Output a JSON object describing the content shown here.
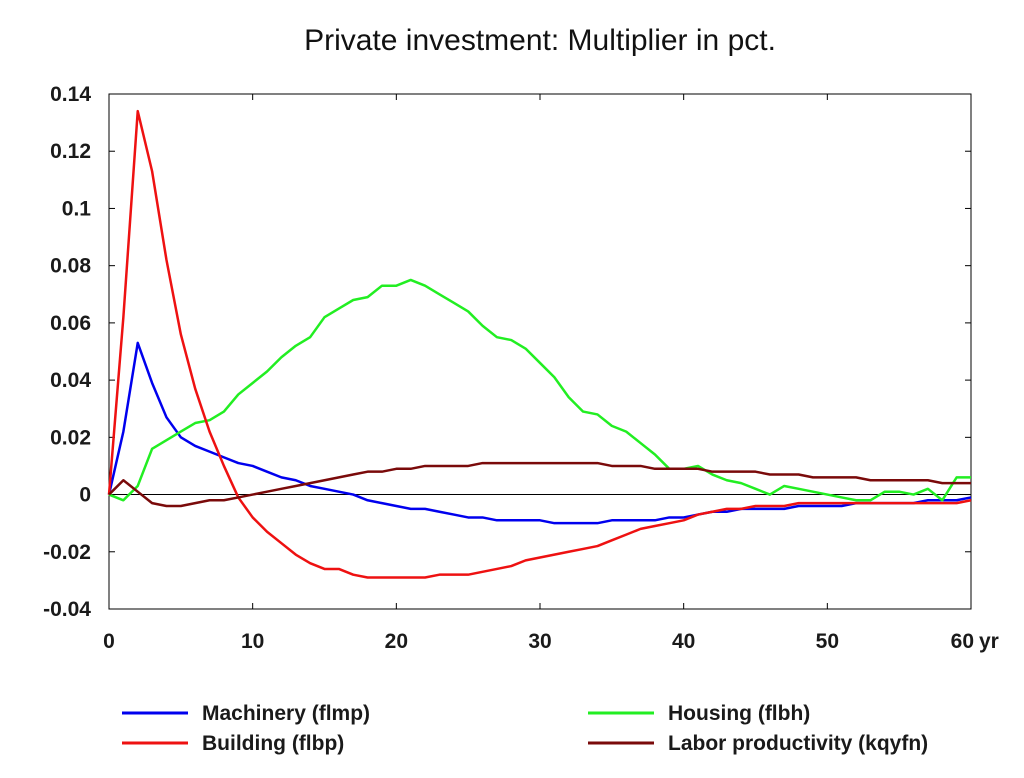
{
  "chart_data": {
    "type": "line",
    "title": "Private investment: Multiplier in pct.",
    "x_unit_label": "yr",
    "xlim": [
      0,
      60
    ],
    "ylim": [
      -0.04,
      0.14
    ],
    "x_ticks": [
      0,
      10,
      20,
      30,
      40,
      50,
      60
    ],
    "y_ticks": [
      -0.04,
      -0.02,
      0,
      0.02,
      0.04,
      0.06,
      0.08,
      0.1,
      0.12,
      0.14
    ],
    "y_tick_labels": [
      "-0.04",
      "-0.02",
      "0",
      "0.02",
      "0.04",
      "0.06",
      "0.08",
      "0.1",
      "0.12",
      "0.14"
    ],
    "x_tick_labels": [
      "0",
      "10",
      "20",
      "30",
      "40",
      "50",
      "60"
    ],
    "zero_line": true,
    "legend_position": "bottom",
    "x": [
      0,
      1,
      2,
      3,
      4,
      5,
      6,
      7,
      8,
      9,
      10,
      11,
      12,
      13,
      14,
      15,
      16,
      17,
      18,
      19,
      20,
      21,
      22,
      23,
      24,
      25,
      26,
      27,
      28,
      29,
      30,
      31,
      32,
      33,
      34,
      35,
      36,
      37,
      38,
      39,
      40,
      41,
      42,
      43,
      44,
      45,
      46,
      47,
      48,
      49,
      50,
      51,
      52,
      53,
      54,
      55,
      56,
      57,
      58,
      59,
      60
    ],
    "series": [
      {
        "name": "Machinery (flmp)",
        "color": "#0000ee",
        "values": [
          0,
          0.022,
          0.053,
          0.039,
          0.027,
          0.02,
          0.017,
          0.015,
          0.013,
          0.011,
          0.01,
          0.008,
          0.006,
          0.005,
          0.003,
          0.002,
          0.001,
          0.0,
          -0.002,
          -0.003,
          -0.004,
          -0.005,
          -0.005,
          -0.006,
          -0.007,
          -0.008,
          -0.008,
          -0.009,
          -0.009,
          -0.009,
          -0.009,
          -0.01,
          -0.01,
          -0.01,
          -0.01,
          -0.009,
          -0.009,
          -0.009,
          -0.009,
          -0.008,
          -0.008,
          -0.007,
          -0.006,
          -0.006,
          -0.005,
          -0.005,
          -0.005,
          -0.005,
          -0.004,
          -0.004,
          -0.004,
          -0.004,
          -0.003,
          -0.003,
          -0.003,
          -0.003,
          -0.003,
          -0.002,
          -0.002,
          -0.002,
          -0.001
        ]
      },
      {
        "name": "Housing (flbh)",
        "color": "#22ee22",
        "values": [
          0,
          -0.002,
          0.003,
          0.016,
          0.019,
          0.022,
          0.025,
          0.026,
          0.029,
          0.035,
          0.039,
          0.043,
          0.048,
          0.052,
          0.055,
          0.062,
          0.065,
          0.068,
          0.069,
          0.073,
          0.073,
          0.075,
          0.073,
          0.07,
          0.067,
          0.064,
          0.059,
          0.055,
          0.054,
          0.051,
          0.046,
          0.041,
          0.034,
          0.029,
          0.028,
          0.024,
          0.022,
          0.018,
          0.014,
          0.009,
          0.009,
          0.01,
          0.007,
          0.005,
          0.004,
          0.002,
          0.0,
          0.003,
          0.002,
          0.001,
          0.0,
          -0.001,
          -0.002,
          -0.002,
          0.001,
          0.001,
          0.0,
          0.002,
          -0.002,
          0.006,
          0.006
        ]
      },
      {
        "name": "Building (flbp)",
        "color": "#ee1111",
        "values": [
          0,
          0.062,
          0.134,
          0.113,
          0.082,
          0.056,
          0.037,
          0.022,
          0.01,
          -0.001,
          -0.008,
          -0.013,
          -0.017,
          -0.021,
          -0.024,
          -0.026,
          -0.026,
          -0.028,
          -0.029,
          -0.029,
          -0.029,
          -0.029,
          -0.029,
          -0.028,
          -0.028,
          -0.028,
          -0.027,
          -0.026,
          -0.025,
          -0.023,
          -0.022,
          -0.021,
          -0.02,
          -0.019,
          -0.018,
          -0.016,
          -0.014,
          -0.012,
          -0.011,
          -0.01,
          -0.009,
          -0.007,
          -0.006,
          -0.005,
          -0.005,
          -0.004,
          -0.004,
          -0.004,
          -0.003,
          -0.003,
          -0.003,
          -0.003,
          -0.003,
          -0.003,
          -0.003,
          -0.003,
          -0.003,
          -0.003,
          -0.003,
          -0.003,
          -0.002
        ]
      },
      {
        "name": "Labor productivity (kqyfn)",
        "color": "#7a0a0a",
        "values": [
          0,
          0.005,
          0.001,
          -0.003,
          -0.004,
          -0.004,
          -0.003,
          -0.002,
          -0.002,
          -0.001,
          0.0,
          0.001,
          0.002,
          0.003,
          0.004,
          0.005,
          0.006,
          0.007,
          0.008,
          0.008,
          0.009,
          0.009,
          0.01,
          0.01,
          0.01,
          0.01,
          0.011,
          0.011,
          0.011,
          0.011,
          0.011,
          0.011,
          0.011,
          0.011,
          0.011,
          0.01,
          0.01,
          0.01,
          0.009,
          0.009,
          0.009,
          0.009,
          0.008,
          0.008,
          0.008,
          0.008,
          0.007,
          0.007,
          0.007,
          0.006,
          0.006,
          0.006,
          0.006,
          0.005,
          0.005,
          0.005,
          0.005,
          0.005,
          0.004,
          0.004,
          0.004
        ]
      }
    ],
    "legend": [
      {
        "label": "Machinery (flmp)",
        "color": "#0000ee"
      },
      {
        "label": "Housing (flbh)",
        "color": "#22ee22"
      },
      {
        "label": "Building (flbp)",
        "color": "#ee1111"
      },
      {
        "label": "Labor productivity (kqyfn)",
        "color": "#7a0a0a"
      }
    ]
  }
}
